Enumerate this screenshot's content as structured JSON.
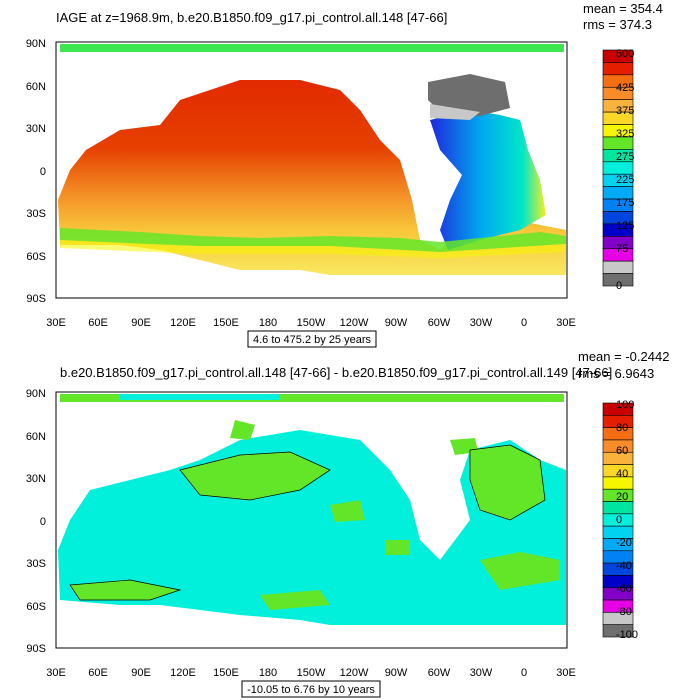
{
  "panel1": {
    "title": "IAGE at z=1968.9m, b.e20.B1850.f09_g17.pi_control.all.148 [47-66]",
    "mean_label": "mean = 354.4",
    "rms_label": "rms = 374.3",
    "range_label": "4.6 to 475.2 by 25 years",
    "lat_ticks": [
      "90N",
      "60N",
      "30N",
      "0",
      "30S",
      "60S",
      "90S"
    ],
    "lon_ticks": [
      "30E",
      "60E",
      "90E",
      "120E",
      "150E",
      "180",
      "150W",
      "120W",
      "90W",
      "60W",
      "30W",
      "0",
      "30E"
    ],
    "colorbar_labels": [
      "500",
      "425",
      "375",
      "325",
      "275",
      "225",
      "175",
      "125",
      "75",
      "0"
    ],
    "colorbar_colors": [
      "#c80000",
      "#e61e00",
      "#f56e14",
      "#f78c28",
      "#f9b23c",
      "#fbd728",
      "#f6f600",
      "#64e628",
      "#00e6a0",
      "#00f0dc",
      "#00d2f0",
      "#00aaf5",
      "#0082f5",
      "#0046dc",
      "#0000c8",
      "#8200c8",
      "#e600e6",
      "#c8c8c8",
      "#6e6e6e"
    ]
  },
  "panel2": {
    "title": "b.e20.B1850.f09_g17.pi_control.all.148 [47-66] - b.e20.B1850.f09_g17.pi_control.all.149 [47-66]",
    "mean_label": "mean = -0.2442",
    "rms_label": "rms = 6.9643",
    "range_label": "-10.05 to 6.76 by 10 years",
    "lat_ticks": [
      "90N",
      "60N",
      "30N",
      "0",
      "30S",
      "60S",
      "90S"
    ],
    "lon_ticks": [
      "30E",
      "60E",
      "90E",
      "120E",
      "150E",
      "180",
      "150W",
      "120W",
      "90W",
      "60W",
      "30W",
      "0",
      "30E"
    ],
    "colorbar_labels": [
      "100",
      "80",
      "60",
      "40",
      "20",
      "0",
      "-20",
      "-40",
      "-60",
      "-80",
      "-100"
    ],
    "colorbar_colors": [
      "#c80000",
      "#e61e00",
      "#f56e14",
      "#f78c28",
      "#f9b23c",
      "#fbd728",
      "#f6f600",
      "#64e628",
      "#00e6a0",
      "#00f0dc",
      "#00d2f0",
      "#00aaf5",
      "#0082f5",
      "#0046dc",
      "#0000c8",
      "#8200c8",
      "#e600e6",
      "#c8c8c8",
      "#6e6e6e"
    ]
  }
}
